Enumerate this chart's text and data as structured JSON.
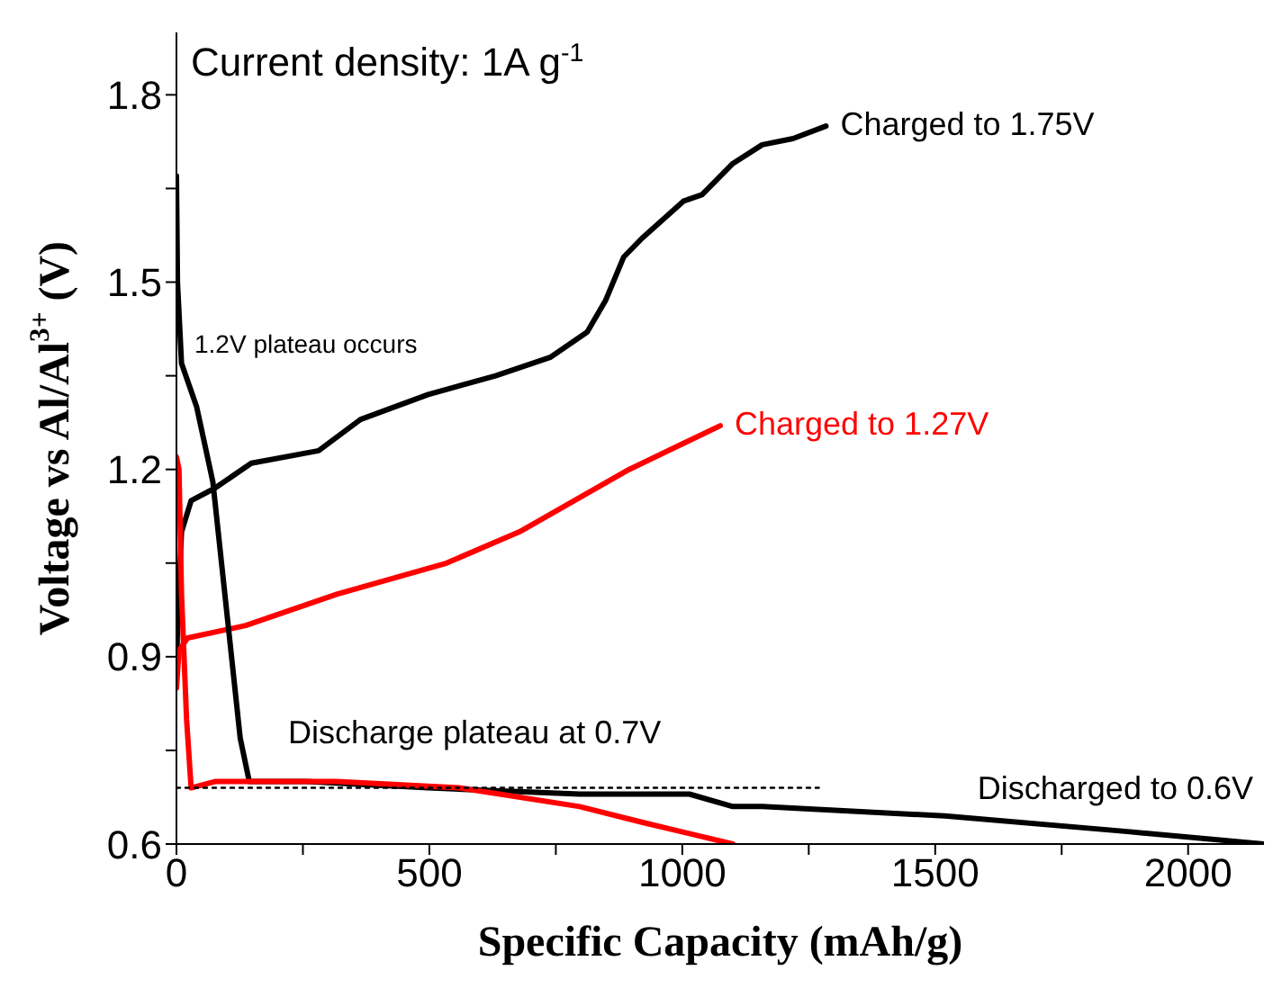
{
  "chart_data": {
    "type": "line",
    "title": "Current density: 1A g$^{-1}$",
    "xlabel": "Specific Capacity (mAh/g)",
    "ylabel": "Voltage vs Al/Al$^{3+}$ (V)",
    "xlim": [
      0,
      2150
    ],
    "xticks": [
      0,
      {
        "value": 250,
        "label": null
      },
      500,
      {
        "value": 750,
        "label": null
      },
      1000,
      {
        "value": 1250,
        "label": null
      },
      1500,
      {
        "value": 1750,
        "label": null
      },
      2000
    ],
    "ylim": [
      0.6,
      1.9
    ],
    "yticks": [
      0.6,
      {
        "value": 0.75,
        "label": null
      },
      0.9,
      {
        "value": 1.05,
        "label": null
      },
      1.2,
      {
        "value": 1.35,
        "label": null
      },
      1.5,
      {
        "value": 1.65,
        "label": null
      },
      1.8
    ],
    "marker": "none",
    "annotations": [
      "1.2V plateau occurs",
      "Discharge plateau at 0.7V"
    ],
    "series": [
      {
        "name": "Charged to 1.75V",
        "color": "#000000",
        "x": [
          0,
          2,
          10,
          29,
          76,
          148,
          281,
          364,
          498,
          631,
          740,
          812,
          848,
          884,
          920,
          1003,
          1039,
          1100,
          1158,
          1219,
          1284
        ],
        "values": [
          0.86,
          0.95,
          1.1,
          1.15,
          1.17,
          1.21,
          1.23,
          1.28,
          1.32,
          1.35,
          1.38,
          1.42,
          1.47,
          1.54,
          1.57,
          1.63,
          1.64,
          1.69,
          1.72,
          1.73,
          1.75
        ]
      },
      {
        "name": "Charged to 1.27V",
        "color": "#ff0000",
        "x": [
          0,
          5,
          22,
          137,
          317,
          534,
          678,
          895,
          1075
        ],
        "values": [
          0.85,
          0.91,
          0.93,
          0.95,
          1.0,
          1.05,
          1.1,
          1.2,
          1.27
        ]
      },
      {
        "name": "Discharged to 0.6V",
        "color": "#000000",
        "x": [
          0,
          2,
          10,
          40,
          72,
          101,
          126,
          144,
          256,
          498,
          797,
          1014,
          1100,
          1158,
          1519,
          1880,
          2150
        ],
        "values": [
          1.67,
          1.5,
          1.37,
          1.3,
          1.18,
          0.96,
          0.77,
          0.7,
          0.7,
          0.69,
          0.68,
          0.68,
          0.66,
          0.66,
          0.645,
          0.62,
          0.6
        ]
      },
      {
        "color": "#ff0000",
        "x": [
          0,
          5,
          10,
          20,
          29,
          76,
          317,
          559,
          797,
          920,
          1100
        ],
        "values": [
          1.22,
          1.2,
          1.0,
          0.8,
          0.69,
          0.7,
          0.7,
          0.69,
          0.66,
          0.635,
          0.6
        ]
      },
      {
        "color": "#000000",
        "line_style": "dotted",
        "x": [
          0,
          1270
        ],
        "values": [
          0.69,
          0.69
        ]
      }
    ]
  }
}
